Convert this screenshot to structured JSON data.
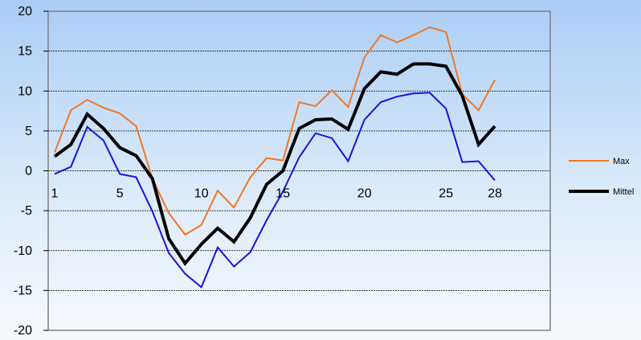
{
  "chart_data": {
    "type": "line",
    "x": [
      1,
      2,
      3,
      4,
      5,
      6,
      7,
      8,
      9,
      10,
      11,
      12,
      13,
      14,
      15,
      16,
      17,
      18,
      19,
      20,
      21,
      22,
      23,
      24,
      25,
      26,
      27,
      28
    ],
    "xticks": [
      1,
      5,
      10,
      15,
      20,
      25,
      28
    ],
    "ylim": [
      -20,
      20
    ],
    "yticks": [
      -20,
      -15,
      -10,
      -5,
      0,
      5,
      10,
      15,
      20
    ],
    "grid": true,
    "legend_position": "right",
    "series": [
      {
        "name": "Max",
        "color": "#f07828",
        "width": 2,
        "show_in_legend": true,
        "values": [
          2.3,
          7.6,
          8.9,
          7.9,
          7.2,
          5.6,
          -1.0,
          -5.3,
          -8.0,
          -6.8,
          -2.5,
          -4.6,
          -0.8,
          1.6,
          1.3,
          8.6,
          8.1,
          10.1,
          8.0,
          14.2,
          17.0,
          16.1,
          17.0,
          18.0,
          17.4,
          9.6,
          7.6,
          11.4
        ]
      },
      {
        "name": "",
        "color": "#1414e0",
        "width": 2,
        "show_in_legend": false,
        "values": [
          -0.4,
          0.5,
          5.5,
          3.8,
          -0.4,
          -0.8,
          -5.1,
          -10.3,
          -12.9,
          -14.6,
          -9.6,
          -12.0,
          -10.2,
          -6.2,
          -2.6,
          1.7,
          4.7,
          4.1,
          1.2,
          6.4,
          8.6,
          9.3,
          9.7,
          9.8,
          7.8,
          1.1,
          1.2,
          -1.2
        ]
      },
      {
        "name": "Mittel",
        "color": "#000000",
        "width": 4,
        "show_in_legend": true,
        "values": [
          1.8,
          3.3,
          7.1,
          5.3,
          2.9,
          1.9,
          -1.0,
          -8.5,
          -11.6,
          -9.2,
          -7.2,
          -8.9,
          -5.9,
          -1.7,
          0.0,
          5.3,
          6.4,
          6.5,
          5.2,
          10.3,
          12.4,
          12.1,
          13.4,
          13.4,
          13.1,
          9.4,
          3.3,
          5.6
        ]
      }
    ]
  }
}
